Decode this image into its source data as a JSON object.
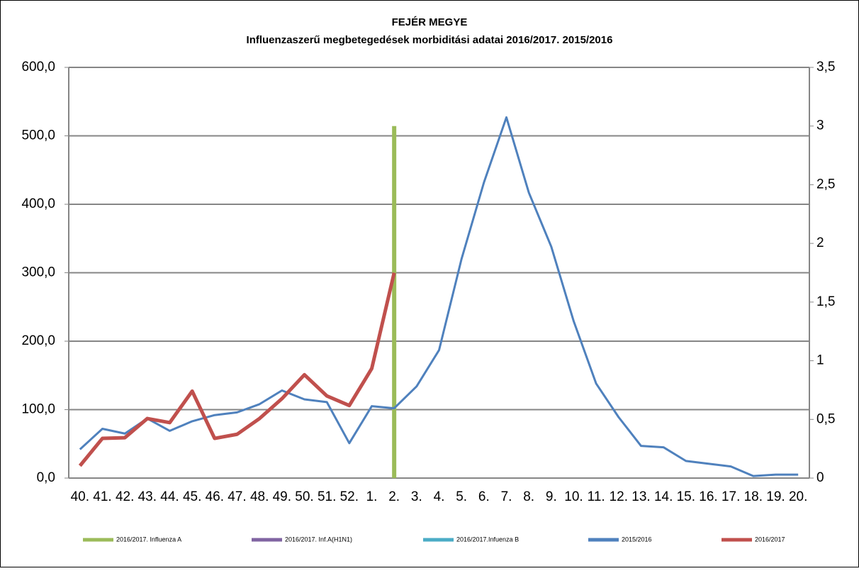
{
  "chart_data": {
    "type": "line",
    "title": "FEJÉR MEGYE",
    "subtitle": "Influenzaszerű megbetegedések morbiditási adatai  2016/2017.  2015/2016",
    "categories": [
      "40.",
      "41.",
      "42.",
      "43.",
      "44.",
      "45.",
      "46.",
      "47.",
      "48.",
      "49.",
      "50.",
      "51.",
      "52.",
      "1.",
      "2.",
      "3.",
      "4.",
      "5.",
      "6.",
      "7.",
      "8.",
      "9.",
      "10.",
      "11.",
      "12.",
      "13.",
      "14.",
      "15.",
      "16.",
      "17.",
      "18.",
      "19.",
      "20."
    ],
    "ylim": [
      0,
      600
    ],
    "yticks": [
      {
        "value": 0,
        "label": "0,0"
      },
      {
        "value": 100,
        "label": "100,0"
      },
      {
        "value": 200,
        "label": "200,0"
      },
      {
        "value": 300,
        "label": "300,0"
      },
      {
        "value": 400,
        "label": "400,0"
      },
      {
        "value": 500,
        "label": "500,0"
      },
      {
        "value": 600,
        "label": "600,0"
      }
    ],
    "y2lim": [
      0,
      3.5
    ],
    "y2ticks": [
      0,
      {
        "value": 0.5,
        "label": "0,5"
      },
      1,
      {
        "value": 1.5,
        "label": "1,5"
      },
      2,
      {
        "value": 2.5,
        "label": "2,5"
      },
      3,
      {
        "value": 3.5,
        "label": "3,5"
      }
    ],
    "grid": true,
    "legend": "bottom",
    "series": [
      {
        "name": "2016/2017. Influenza A",
        "color": "#9bbb59",
        "type": "bar",
        "axis": "y2",
        "values": [
          null,
          null,
          null,
          null,
          null,
          null,
          null,
          null,
          null,
          null,
          null,
          null,
          null,
          null,
          3,
          null,
          null,
          null,
          null,
          null,
          null,
          null,
          null,
          null,
          null,
          null,
          null,
          null,
          null,
          null,
          null,
          null,
          null
        ]
      },
      {
        "name": "2016/2017. Inf.A(H1N1)",
        "color": "#8064a2",
        "type": "bar",
        "axis": "y2",
        "values": [
          null,
          null,
          null,
          null,
          null,
          null,
          null,
          null,
          null,
          null,
          null,
          null,
          null,
          null,
          null,
          null,
          null,
          null,
          null,
          null,
          null,
          null,
          null,
          null,
          null,
          null,
          null,
          null,
          null,
          null,
          null,
          null,
          null
        ]
      },
      {
        "name": "2016/2017.Infuenza B",
        "color": "#4bacc6",
        "type": "bar",
        "axis": "y2",
        "values": [
          null,
          null,
          null,
          null,
          null,
          null,
          null,
          null,
          null,
          null,
          null,
          null,
          null,
          null,
          null,
          null,
          null,
          null,
          null,
          null,
          null,
          null,
          null,
          null,
          null,
          null,
          null,
          null,
          null,
          null,
          null,
          null,
          null
        ]
      },
      {
        "name": "2015/2016",
        "color": "#4f81bd",
        "type": "line",
        "values": [
          42,
          72,
          65,
          87,
          69,
          83,
          92,
          96,
          108,
          128,
          115,
          111,
          51,
          105,
          102,
          134,
          187,
          320,
          432,
          527,
          417,
          338,
          229,
          138,
          89,
          47,
          45,
          25,
          21,
          17,
          3,
          5,
          5
        ]
      },
      {
        "name": "2016/2017",
        "color": "#c0504d",
        "type": "line",
        "values": [
          18,
          58,
          59,
          87,
          81,
          127,
          58,
          64,
          87,
          116,
          151,
          120,
          106,
          160,
          300,
          null,
          null,
          null,
          null,
          null,
          null,
          null,
          null,
          null,
          null,
          null,
          null,
          null,
          null,
          null,
          null,
          null,
          null
        ]
      }
    ]
  }
}
